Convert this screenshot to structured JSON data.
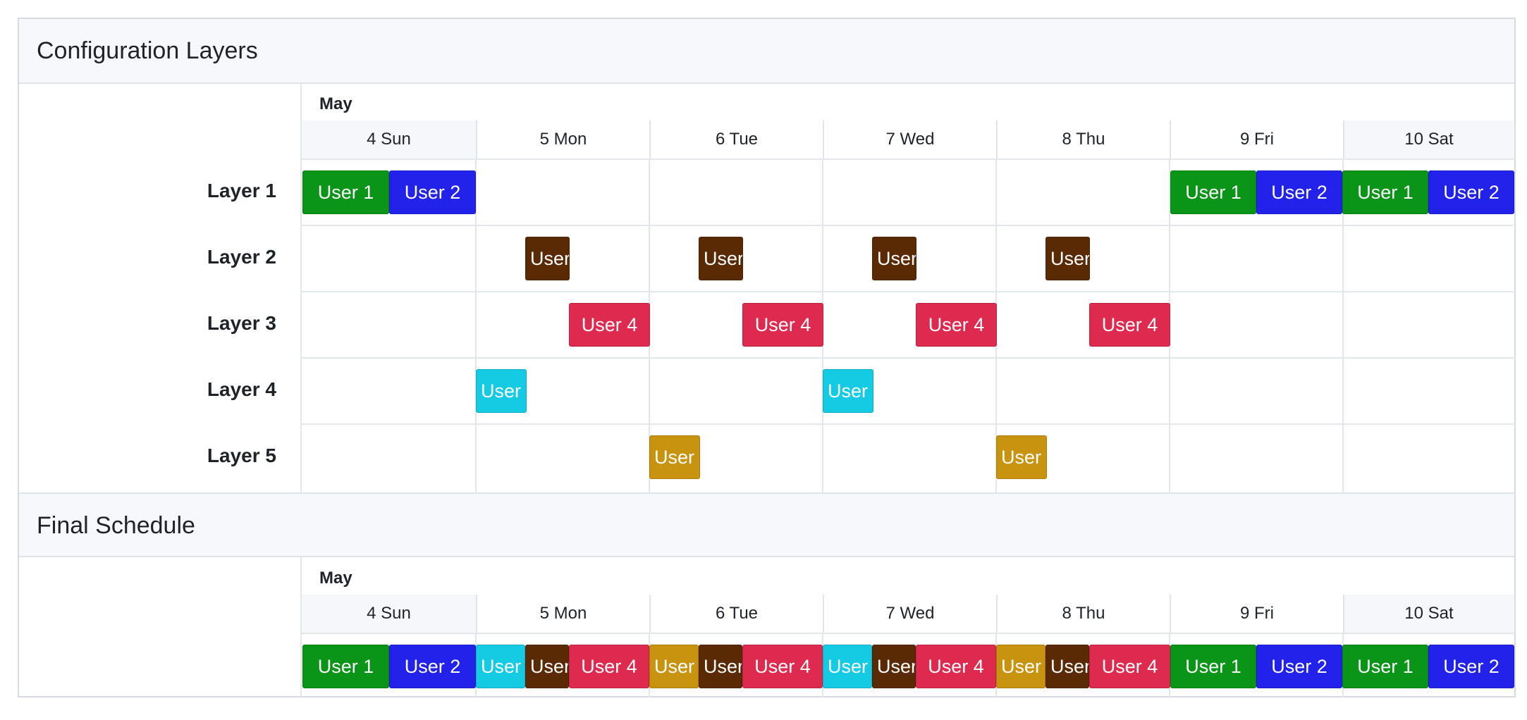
{
  "colors": {
    "user1": "#0a9418",
    "user2": "#2222ea",
    "user3": "#5a2a05",
    "user4": "#df2a4f",
    "user5": "#15cbe3",
    "user6": "#c8930f"
  },
  "configuration": {
    "title": "Configuration Layers",
    "month": "May",
    "days": [
      "4 Sun",
      "5 Mon",
      "6 Tue",
      "7 Wed",
      "8 Thu",
      "9 Fri",
      "10 Sat"
    ],
    "layers": [
      {
        "label": "Layer 1"
      },
      {
        "label": "Layer 2"
      },
      {
        "label": "Layer 3"
      },
      {
        "label": "Layer 4"
      },
      {
        "label": "Layer 5"
      }
    ],
    "events": {
      "l1": [
        "User 1",
        "User 2",
        "User 1",
        "User 2",
        "User 1",
        "User 2"
      ],
      "l2": [
        "User",
        "User",
        "User",
        "User"
      ],
      "l3": [
        "User 4",
        "User 4",
        "User 4",
        "User 4"
      ],
      "l4": [
        "User",
        "User"
      ],
      "l5": [
        "User",
        "User"
      ]
    }
  },
  "final": {
    "title": "Final Schedule",
    "month": "May",
    "days": [
      "4 Sun",
      "5 Mon",
      "6 Tue",
      "7 Wed",
      "8 Thu",
      "9 Fri",
      "10 Sat"
    ],
    "events": [
      "User 1",
      "User 2",
      "User",
      "User",
      "User 4",
      "User",
      "User",
      "User 4",
      "User",
      "User",
      "User 4",
      "User",
      "User",
      "User 4",
      "User 1",
      "User 2",
      "User 1",
      "User 2"
    ]
  }
}
